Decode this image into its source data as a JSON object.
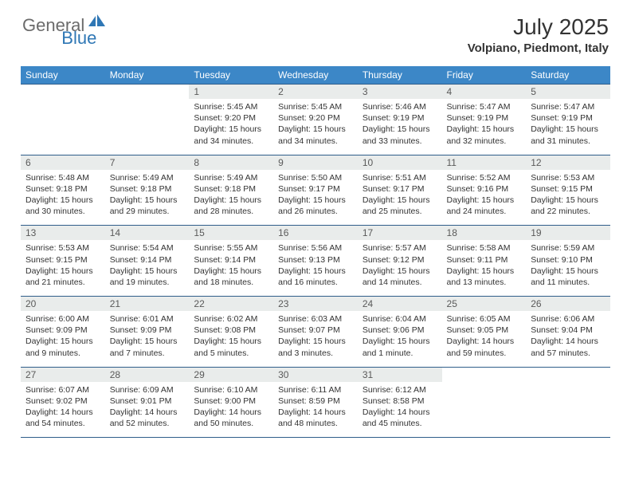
{
  "brand": {
    "general": "General",
    "blue": "Blue"
  },
  "title": {
    "month": "July 2025",
    "location": "Volpiano, Piedmont, Italy"
  },
  "colors": {
    "header_bg": "#3c87c7",
    "border": "#2f5e8a",
    "daynum_bg": "#e9eceb",
    "logo_gray": "#6b6b6b",
    "logo_blue": "#2f77b5"
  },
  "dow": [
    "Sunday",
    "Monday",
    "Tuesday",
    "Wednesday",
    "Thursday",
    "Friday",
    "Saturday"
  ],
  "weeks": [
    [
      {
        "n": "",
        "sr": "",
        "ss": "",
        "dl": ""
      },
      {
        "n": "",
        "sr": "",
        "ss": "",
        "dl": ""
      },
      {
        "n": "1",
        "sr": "5:45 AM",
        "ss": "9:20 PM",
        "dl": "15 hours and 34 minutes."
      },
      {
        "n": "2",
        "sr": "5:45 AM",
        "ss": "9:20 PM",
        "dl": "15 hours and 34 minutes."
      },
      {
        "n": "3",
        "sr": "5:46 AM",
        "ss": "9:19 PM",
        "dl": "15 hours and 33 minutes."
      },
      {
        "n": "4",
        "sr": "5:47 AM",
        "ss": "9:19 PM",
        "dl": "15 hours and 32 minutes."
      },
      {
        "n": "5",
        "sr": "5:47 AM",
        "ss": "9:19 PM",
        "dl": "15 hours and 31 minutes."
      }
    ],
    [
      {
        "n": "6",
        "sr": "5:48 AM",
        "ss": "9:18 PM",
        "dl": "15 hours and 30 minutes."
      },
      {
        "n": "7",
        "sr": "5:49 AM",
        "ss": "9:18 PM",
        "dl": "15 hours and 29 minutes."
      },
      {
        "n": "8",
        "sr": "5:49 AM",
        "ss": "9:18 PM",
        "dl": "15 hours and 28 minutes."
      },
      {
        "n": "9",
        "sr": "5:50 AM",
        "ss": "9:17 PM",
        "dl": "15 hours and 26 minutes."
      },
      {
        "n": "10",
        "sr": "5:51 AM",
        "ss": "9:17 PM",
        "dl": "15 hours and 25 minutes."
      },
      {
        "n": "11",
        "sr": "5:52 AM",
        "ss": "9:16 PM",
        "dl": "15 hours and 24 minutes."
      },
      {
        "n": "12",
        "sr": "5:53 AM",
        "ss": "9:15 PM",
        "dl": "15 hours and 22 minutes."
      }
    ],
    [
      {
        "n": "13",
        "sr": "5:53 AM",
        "ss": "9:15 PM",
        "dl": "15 hours and 21 minutes."
      },
      {
        "n": "14",
        "sr": "5:54 AM",
        "ss": "9:14 PM",
        "dl": "15 hours and 19 minutes."
      },
      {
        "n": "15",
        "sr": "5:55 AM",
        "ss": "9:14 PM",
        "dl": "15 hours and 18 minutes."
      },
      {
        "n": "16",
        "sr": "5:56 AM",
        "ss": "9:13 PM",
        "dl": "15 hours and 16 minutes."
      },
      {
        "n": "17",
        "sr": "5:57 AM",
        "ss": "9:12 PM",
        "dl": "15 hours and 14 minutes."
      },
      {
        "n": "18",
        "sr": "5:58 AM",
        "ss": "9:11 PM",
        "dl": "15 hours and 13 minutes."
      },
      {
        "n": "19",
        "sr": "5:59 AM",
        "ss": "9:10 PM",
        "dl": "15 hours and 11 minutes."
      }
    ],
    [
      {
        "n": "20",
        "sr": "6:00 AM",
        "ss": "9:09 PM",
        "dl": "15 hours and 9 minutes."
      },
      {
        "n": "21",
        "sr": "6:01 AM",
        "ss": "9:09 PM",
        "dl": "15 hours and 7 minutes."
      },
      {
        "n": "22",
        "sr": "6:02 AM",
        "ss": "9:08 PM",
        "dl": "15 hours and 5 minutes."
      },
      {
        "n": "23",
        "sr": "6:03 AM",
        "ss": "9:07 PM",
        "dl": "15 hours and 3 minutes."
      },
      {
        "n": "24",
        "sr": "6:04 AM",
        "ss": "9:06 PM",
        "dl": "15 hours and 1 minute."
      },
      {
        "n": "25",
        "sr": "6:05 AM",
        "ss": "9:05 PM",
        "dl": "14 hours and 59 minutes."
      },
      {
        "n": "26",
        "sr": "6:06 AM",
        "ss": "9:04 PM",
        "dl": "14 hours and 57 minutes."
      }
    ],
    [
      {
        "n": "27",
        "sr": "6:07 AM",
        "ss": "9:02 PM",
        "dl": "14 hours and 54 minutes."
      },
      {
        "n": "28",
        "sr": "6:09 AM",
        "ss": "9:01 PM",
        "dl": "14 hours and 52 minutes."
      },
      {
        "n": "29",
        "sr": "6:10 AM",
        "ss": "9:00 PM",
        "dl": "14 hours and 50 minutes."
      },
      {
        "n": "30",
        "sr": "6:11 AM",
        "ss": "8:59 PM",
        "dl": "14 hours and 48 minutes."
      },
      {
        "n": "31",
        "sr": "6:12 AM",
        "ss": "8:58 PM",
        "dl": "14 hours and 45 minutes."
      },
      {
        "n": "",
        "sr": "",
        "ss": "",
        "dl": ""
      },
      {
        "n": "",
        "sr": "",
        "ss": "",
        "dl": ""
      }
    ]
  ],
  "labels": {
    "sunrise": "Sunrise:",
    "sunset": "Sunset:",
    "daylight": "Daylight:"
  }
}
